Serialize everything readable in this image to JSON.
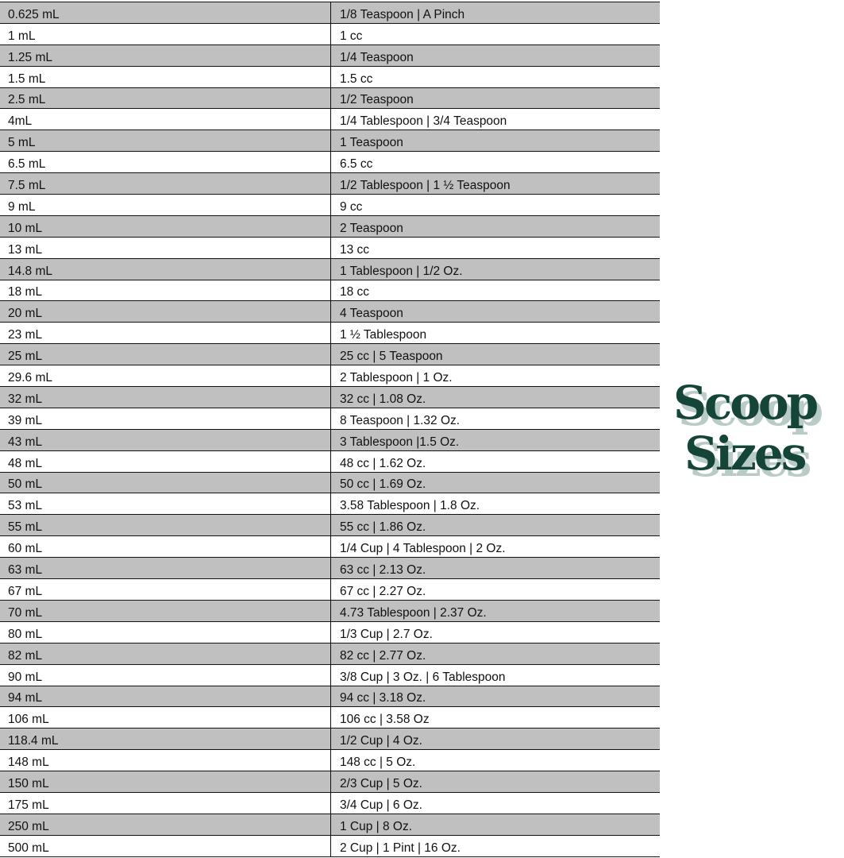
{
  "logo": {
    "line1": "Scoop",
    "line2": "Sizes",
    "color": "#154538",
    "shadow_color": "#b9cbc7"
  },
  "colors": {
    "stripe": "#c0c0c0",
    "border": "#111111"
  },
  "rows": [
    [
      "0.625 mL",
      "1/8 Teaspoon | A Pinch"
    ],
    [
      "1 mL",
      "1 cc"
    ],
    [
      "1.25 mL",
      "1/4 Teaspoon"
    ],
    [
      "1.5 mL",
      "1.5 cc"
    ],
    [
      "2.5 mL",
      "1/2 Teaspoon"
    ],
    [
      "4mL",
      "1/4 Tablespoon | 3/4 Teaspoon"
    ],
    [
      "5 mL",
      "1 Teaspoon"
    ],
    [
      "6.5 mL",
      "6.5 cc"
    ],
    [
      "7.5 mL",
      "1/2 Tablespoon | 1 ½ Teaspoon"
    ],
    [
      "9 mL",
      "9 cc"
    ],
    [
      "10 mL",
      "2 Teaspoon"
    ],
    [
      "13 mL",
      "13 cc"
    ],
    [
      "14.8 mL",
      "1 Tablespoon | 1/2 Oz."
    ],
    [
      "18 mL",
      "18 cc"
    ],
    [
      "20 mL",
      "4 Teaspoon"
    ],
    [
      "23 mL",
      "1 ½ Tablespoon"
    ],
    [
      "25 mL",
      "25 cc | 5 Teaspoon"
    ],
    [
      "29.6 mL",
      "2 Tablespoon | 1 Oz."
    ],
    [
      "32 mL",
      "32 cc | 1.08 Oz."
    ],
    [
      "39 mL",
      "8 Teaspoon | 1.32 Oz."
    ],
    [
      "43 mL",
      "3 Tablespoon |1.5 Oz."
    ],
    [
      "48 mL",
      "48 cc | 1.62 Oz."
    ],
    [
      "50 mL",
      "50 cc | 1.69 Oz."
    ],
    [
      "53 mL",
      "3.58 Tablespoon | 1.8 Oz."
    ],
    [
      "55 mL",
      "55 cc | 1.86 Oz."
    ],
    [
      "60 mL",
      "1/4 Cup | 4 Tablespoon | 2 Oz."
    ],
    [
      "63 mL",
      "63 cc | 2.13 Oz."
    ],
    [
      "67 mL",
      "67 cc | 2.27 Oz."
    ],
    [
      "70 mL",
      "4.73 Tablespoon | 2.37 Oz."
    ],
    [
      "80 mL",
      "1/3 Cup | 2.7 Oz."
    ],
    [
      "82 mL",
      "82 cc | 2.77 Oz."
    ],
    [
      "90 mL",
      "3/8 Cup | 3 Oz. | 6 Tablespoon"
    ],
    [
      "94 mL",
      "94 cc | 3.18 Oz."
    ],
    [
      "106 mL",
      "106 cc | 3.58 Oz"
    ],
    [
      "118.4 mL",
      "1/2 Cup | 4 Oz."
    ],
    [
      "148 mL",
      "148 cc | 5 Oz."
    ],
    [
      "150 mL",
      "2/3 Cup | 5 Oz."
    ],
    [
      "175 mL",
      "3/4 Cup | 6 Oz."
    ],
    [
      "250 mL",
      "1 Cup | 8 Oz."
    ],
    [
      "500 mL",
      "2 Cup | 1 Pint | 16 Oz."
    ]
  ]
}
